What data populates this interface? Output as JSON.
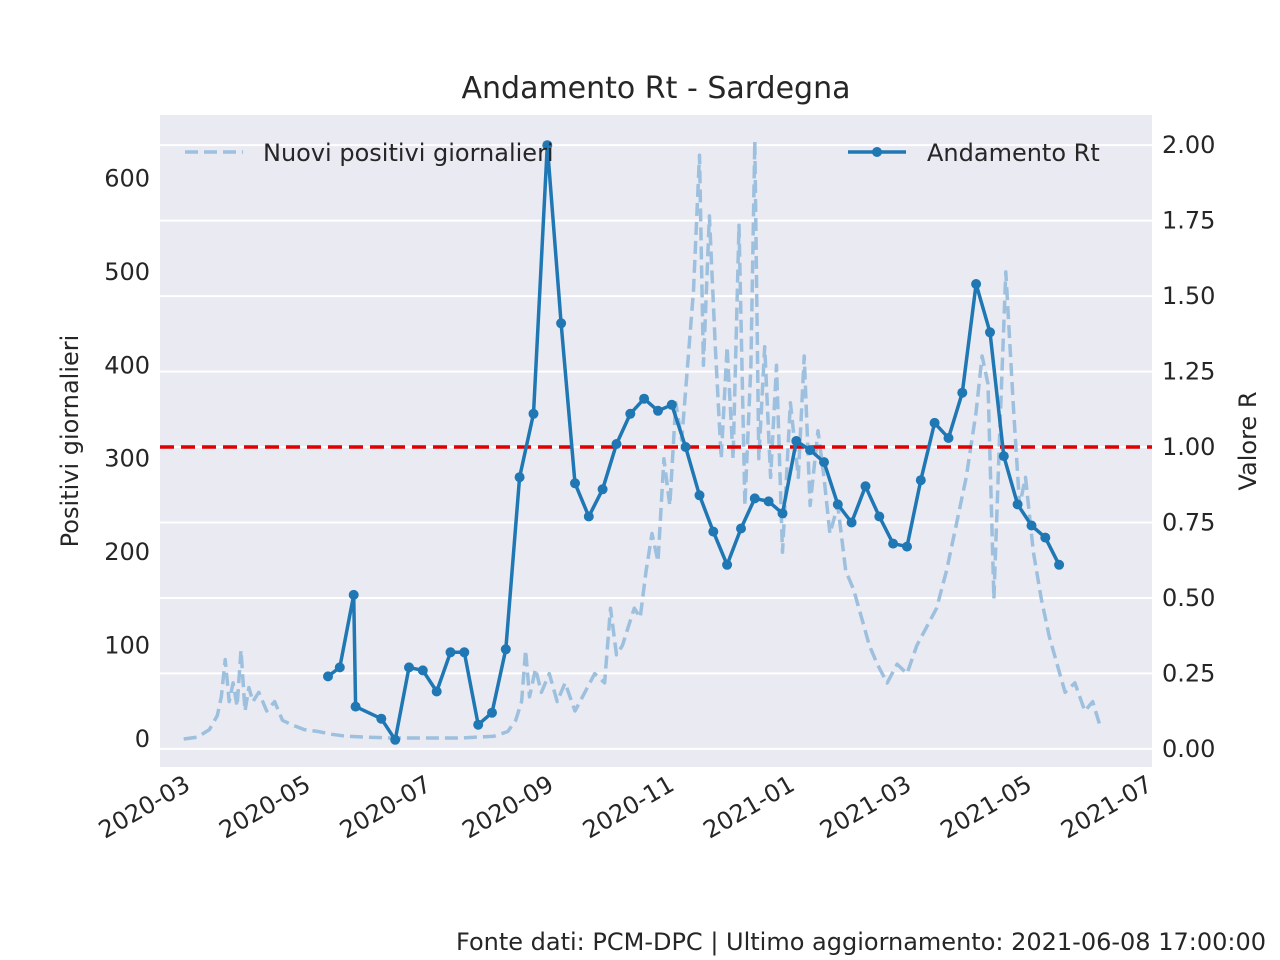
{
  "chart_data": {
    "type": "line",
    "title": "Andamento Rt - Sardegna",
    "ylabel_left": "Positivi giornalieri",
    "ylabel_right": "Valore R",
    "ylim_left": [
      -30,
      668
    ],
    "ylim_right": [
      -0.06,
      2.1
    ],
    "yticks_left": [
      "0",
      "100",
      "200",
      "300",
      "400",
      "500",
      "600"
    ],
    "yticks_right": [
      "0.00",
      "0.25",
      "0.50",
      "0.75",
      "1.00",
      "1.25",
      "1.50",
      "1.75",
      "2.00"
    ],
    "xlim": [
      "2020-02-18",
      "2021-07-04"
    ],
    "xticks": [
      "2020-03",
      "2020-05",
      "2020-07",
      "2020-09",
      "2020-11",
      "2021-01",
      "2021-03",
      "2021-05",
      "2021-07"
    ],
    "grid": true,
    "reference_line": {
      "axis": "right",
      "value": 1.0,
      "color": "#e00000",
      "style": "dashed"
    },
    "colors": {
      "rt": "#1f77b4",
      "positivi": "#9dc0de",
      "plot_bg": "#eaeaf2",
      "threshold": "#e00000"
    },
    "legend": {
      "positivi": "Nuovi positivi giornalieri",
      "rt": "Andamento Rt"
    },
    "footer": "Fonte dati: PCM-DPC | Ultimo aggiornamento: 2021-06-08 17:00:00",
    "series": [
      {
        "name": "Nuovi positivi giornalieri",
        "axis": "left",
        "style": "dashed",
        "points": [
          [
            "2020-03-01",
            0
          ],
          [
            "2020-03-08",
            2
          ],
          [
            "2020-03-14",
            10
          ],
          [
            "2020-03-18",
            25
          ],
          [
            "2020-03-20",
            45
          ],
          [
            "2020-03-22",
            85
          ],
          [
            "2020-03-24",
            40
          ],
          [
            "2020-03-26",
            60
          ],
          [
            "2020-03-28",
            35
          ],
          [
            "2020-03-30",
            95
          ],
          [
            "2020-04-01",
            30
          ],
          [
            "2020-04-03",
            55
          ],
          [
            "2020-04-05",
            40
          ],
          [
            "2020-04-08",
            50
          ],
          [
            "2020-04-12",
            30
          ],
          [
            "2020-04-16",
            40
          ],
          [
            "2020-04-20",
            20
          ],
          [
            "2020-04-25",
            15
          ],
          [
            "2020-05-01",
            10
          ],
          [
            "2020-05-08",
            8
          ],
          [
            "2020-05-15",
            5
          ],
          [
            "2020-05-22",
            3
          ],
          [
            "2020-06-01",
            2
          ],
          [
            "2020-06-15",
            1
          ],
          [
            "2020-07-01",
            1
          ],
          [
            "2020-07-20",
            1
          ],
          [
            "2020-08-05",
            3
          ],
          [
            "2020-08-12",
            8
          ],
          [
            "2020-08-16",
            20
          ],
          [
            "2020-08-19",
            40
          ],
          [
            "2020-08-21",
            95
          ],
          [
            "2020-08-23",
            45
          ],
          [
            "2020-08-26",
            75
          ],
          [
            "2020-08-29",
            50
          ],
          [
            "2020-09-02",
            70
          ],
          [
            "2020-09-06",
            40
          ],
          [
            "2020-09-10",
            60
          ],
          [
            "2020-09-15",
            30
          ],
          [
            "2020-09-20",
            50
          ],
          [
            "2020-09-25",
            70
          ],
          [
            "2020-09-30",
            60
          ],
          [
            "2020-10-03",
            140
          ],
          [
            "2020-10-06",
            90
          ],
          [
            "2020-10-09",
            100
          ],
          [
            "2020-10-12",
            120
          ],
          [
            "2020-10-15",
            140
          ],
          [
            "2020-10-18",
            130
          ],
          [
            "2020-10-21",
            180
          ],
          [
            "2020-10-24",
            220
          ],
          [
            "2020-10-27",
            190
          ],
          [
            "2020-10-30",
            300
          ],
          [
            "2020-11-02",
            250
          ],
          [
            "2020-11-05",
            360
          ],
          [
            "2020-11-08",
            320
          ],
          [
            "2020-11-11",
            400
          ],
          [
            "2020-11-14",
            480
          ],
          [
            "2020-11-17",
            625
          ],
          [
            "2020-11-19",
            400
          ],
          [
            "2020-11-22",
            560
          ],
          [
            "2020-11-25",
            420
          ],
          [
            "2020-11-28",
            300
          ],
          [
            "2020-12-01",
            420
          ],
          [
            "2020-12-04",
            300
          ],
          [
            "2020-12-07",
            550
          ],
          [
            "2020-12-10",
            250
          ],
          [
            "2020-12-13",
            400
          ],
          [
            "2020-12-15",
            640
          ],
          [
            "2020-12-17",
            300
          ],
          [
            "2020-12-20",
            420
          ],
          [
            "2020-12-23",
            280
          ],
          [
            "2020-12-26",
            400
          ],
          [
            "2020-12-29",
            200
          ],
          [
            "2021-01-02",
            360
          ],
          [
            "2021-01-06",
            280
          ],
          [
            "2021-01-09",
            410
          ],
          [
            "2021-01-12",
            250
          ],
          [
            "2021-01-16",
            330
          ],
          [
            "2021-01-19",
            280
          ],
          [
            "2021-01-22",
            220
          ],
          [
            "2021-01-26",
            250
          ],
          [
            "2021-01-30",
            180
          ],
          [
            "2021-02-03",
            160
          ],
          [
            "2021-02-07",
            130
          ],
          [
            "2021-02-11",
            100
          ],
          [
            "2021-02-15",
            80
          ],
          [
            "2021-02-20",
            60
          ],
          [
            "2021-02-25",
            80
          ],
          [
            "2021-03-02",
            70
          ],
          [
            "2021-03-07",
            100
          ],
          [
            "2021-03-12",
            120
          ],
          [
            "2021-03-17",
            140
          ],
          [
            "2021-03-22",
            180
          ],
          [
            "2021-03-27",
            230
          ],
          [
            "2021-04-01",
            280
          ],
          [
            "2021-04-06",
            350
          ],
          [
            "2021-04-09",
            410
          ],
          [
            "2021-04-12",
            380
          ],
          [
            "2021-04-15",
            150
          ],
          [
            "2021-04-18",
            330
          ],
          [
            "2021-04-21",
            500
          ],
          [
            "2021-04-25",
            350
          ],
          [
            "2021-04-28",
            250
          ],
          [
            "2021-05-01",
            280
          ],
          [
            "2021-05-05",
            200
          ],
          [
            "2021-05-09",
            150
          ],
          [
            "2021-05-13",
            110
          ],
          [
            "2021-05-17",
            80
          ],
          [
            "2021-05-21",
            50
          ],
          [
            "2021-05-26",
            60
          ],
          [
            "2021-05-31",
            30
          ],
          [
            "2021-06-04",
            40
          ],
          [
            "2021-06-08",
            12
          ]
        ]
      },
      {
        "name": "Andamento Rt",
        "axis": "right",
        "style": "solid-markers",
        "points": [
          [
            "2020-05-13",
            0.24
          ],
          [
            "2020-05-19",
            0.27
          ],
          [
            "2020-05-26",
            0.51
          ],
          [
            "2020-05-27",
            0.14
          ],
          [
            "2020-06-09",
            0.1
          ],
          [
            "2020-06-16",
            0.03
          ],
          [
            "2020-06-23",
            0.27
          ],
          [
            "2020-06-30",
            0.26
          ],
          [
            "2020-07-07",
            0.19
          ],
          [
            "2020-07-14",
            0.32
          ],
          [
            "2020-07-21",
            0.32
          ],
          [
            "2020-07-28",
            0.08
          ],
          [
            "2020-08-04",
            0.12
          ],
          [
            "2020-08-11",
            0.33
          ],
          [
            "2020-08-18",
            0.9
          ],
          [
            "2020-08-25",
            1.11
          ],
          [
            "2020-09-01",
            2.0
          ],
          [
            "2020-09-08",
            1.41
          ],
          [
            "2020-09-15",
            0.88
          ],
          [
            "2020-09-22",
            0.77
          ],
          [
            "2020-09-29",
            0.86
          ],
          [
            "2020-10-06",
            1.01
          ],
          [
            "2020-10-13",
            1.11
          ],
          [
            "2020-10-20",
            1.16
          ],
          [
            "2020-10-27",
            1.12
          ],
          [
            "2020-11-03",
            1.14
          ],
          [
            "2020-11-10",
            1.0
          ],
          [
            "2020-11-17",
            0.84
          ],
          [
            "2020-11-24",
            0.72
          ],
          [
            "2020-12-01",
            0.61
          ],
          [
            "2020-12-08",
            0.73
          ],
          [
            "2020-12-15",
            0.83
          ],
          [
            "2020-12-22",
            0.82
          ],
          [
            "2020-12-29",
            0.78
          ],
          [
            "2021-01-05",
            1.02
          ],
          [
            "2021-01-12",
            0.99
          ],
          [
            "2021-01-19",
            0.95
          ],
          [
            "2021-01-26",
            0.81
          ],
          [
            "2021-02-02",
            0.75
          ],
          [
            "2021-02-09",
            0.87
          ],
          [
            "2021-02-16",
            0.77
          ],
          [
            "2021-02-23",
            0.68
          ],
          [
            "2021-03-02",
            0.67
          ],
          [
            "2021-03-09",
            0.89
          ],
          [
            "2021-03-16",
            1.08
          ],
          [
            "2021-03-23",
            1.03
          ],
          [
            "2021-03-30",
            1.18
          ],
          [
            "2021-04-06",
            1.54
          ],
          [
            "2021-04-13",
            1.38
          ],
          [
            "2021-04-20",
            0.97
          ],
          [
            "2021-04-27",
            0.81
          ],
          [
            "2021-05-04",
            0.74
          ],
          [
            "2021-05-11",
            0.7
          ],
          [
            "2021-05-18",
            0.61
          ]
        ]
      }
    ]
  }
}
